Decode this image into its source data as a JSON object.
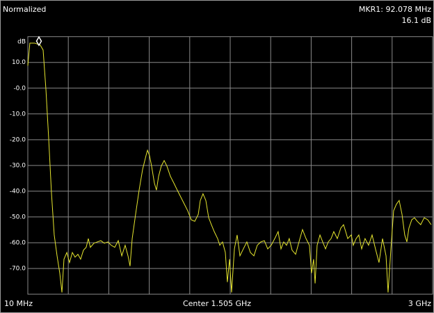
{
  "chart_data": {
    "type": "line",
    "title": "Normalized",
    "y_unit": "dB",
    "x_start_label": "10 MHz",
    "x_center_label": "Center 1.505 GHz",
    "x_stop_label": "3 GHz",
    "xlim": [
      10,
      3000
    ],
    "ylim": [
      -80,
      20
    ],
    "x_divisions": 10,
    "grid": true,
    "yticks": [
      {
        "value": 10,
        "label": "10.0"
      },
      {
        "value": 0,
        "label": "-0.0"
      },
      {
        "value": -10,
        "label": "-10.0"
      },
      {
        "value": -20,
        "label": "-20.0"
      },
      {
        "value": -30,
        "label": "-30.0"
      },
      {
        "value": -40,
        "label": "-40.0"
      },
      {
        "value": -50,
        "label": "-50.0"
      },
      {
        "value": -60,
        "label": "-60.0"
      },
      {
        "value": -70,
        "label": "-70.0"
      }
    ],
    "color": "#e6e62e",
    "x": [
      10,
      25,
      61,
      102,
      123,
      144,
      164,
      185,
      205,
      226,
      246,
      262,
      277,
      298,
      318,
      339,
      359,
      380,
      400,
      421,
      441,
      457,
      472,
      498,
      524,
      549,
      575,
      601,
      626,
      652,
      678,
      704,
      729,
      750,
      765,
      781,
      806,
      832,
      858,
      883,
      894,
      909,
      924,
      945,
      960,
      976,
      996,
      1017,
      1037,
      1063,
      1089,
      1114,
      1140,
      1166,
      1191,
      1217,
      1243,
      1269,
      1284,
      1304,
      1325,
      1346,
      1366,
      1387,
      1412,
      1428,
      1448,
      1469,
      1484,
      1500,
      1515,
      1536,
      1556,
      1577,
      1602,
      1628,
      1654,
      1680,
      1705,
      1731,
      1757,
      1782,
      1808,
      1834,
      1859,
      1880,
      1900,
      1921,
      1941,
      1962,
      1988,
      2013,
      2039,
      2065,
      2090,
      2106,
      2121,
      2132,
      2147,
      2168,
      2188,
      2209,
      2229,
      2250,
      2270,
      2296,
      2322,
      2342,
      2358,
      2373,
      2399,
      2414,
      2435,
      2455,
      2476,
      2501,
      2527,
      2553,
      2578,
      2604,
      2630,
      2656,
      2671,
      2692,
      2712,
      2733,
      2753,
      2774,
      2794,
      2810,
      2825,
      2846,
      2866,
      2887,
      2912,
      2938,
      2964,
      2989
    ],
    "values": [
      8.7,
      17.5,
      17.5,
      16.7,
      14.8,
      -0.7,
      -19.5,
      -41.0,
      -57.0,
      -65.1,
      -71.8,
      -79.3,
      -66.4,
      -63.8,
      -67.7,
      -63.8,
      -65.6,
      -64.5,
      -66.4,
      -62.9,
      -61.8,
      -58.4,
      -61.8,
      -60.2,
      -59.7,
      -59.2,
      -60.2,
      -59.7,
      -61.0,
      -61.8,
      -59.2,
      -65.1,
      -61.0,
      -65.1,
      -69.1,
      -58.4,
      -49.0,
      -39.6,
      -31.5,
      -26.2,
      -24.1,
      -26.2,
      -30.2,
      -36.9,
      -39.6,
      -34.2,
      -30.2,
      -28.1,
      -30.2,
      -34.2,
      -36.9,
      -39.6,
      -42.3,
      -45.0,
      -47.6,
      -51.1,
      -51.7,
      -49.0,
      -43.6,
      -41.0,
      -43.6,
      -50.3,
      -53.0,
      -55.7,
      -58.4,
      -61.0,
      -59.7,
      -63.8,
      -75.3,
      -66.4,
      -79.3,
      -62.4,
      -57.0,
      -65.1,
      -62.4,
      -59.7,
      -63.8,
      -65.1,
      -61.0,
      -59.7,
      -59.2,
      -62.4,
      -61.0,
      -58.4,
      -55.7,
      -62.4,
      -59.7,
      -61.0,
      -58.4,
      -62.9,
      -64.5,
      -59.7,
      -54.9,
      -58.4,
      -61.0,
      -71.8,
      -66.4,
      -75.8,
      -61.0,
      -57.0,
      -59.7,
      -62.4,
      -59.7,
      -58.4,
      -55.7,
      -58.4,
      -54.3,
      -53.0,
      -55.7,
      -58.4,
      -57.0,
      -61.0,
      -58.4,
      -57.0,
      -62.4,
      -58.4,
      -61.0,
      -57.0,
      -62.4,
      -67.7,
      -58.4,
      -65.1,
      -79.3,
      -62.4,
      -47.6,
      -45.0,
      -43.6,
      -49.0,
      -57.0,
      -59.7,
      -54.3,
      -51.1,
      -50.3,
      -51.7,
      -53.0,
      -50.3,
      -51.1,
      -53.0
    ],
    "marker": {
      "x": 92.078,
      "y": 16.1,
      "x_label": "MKR1: 92.078 MHz",
      "y_label": "16.1 dB",
      "color": "#2fd12f"
    }
  }
}
